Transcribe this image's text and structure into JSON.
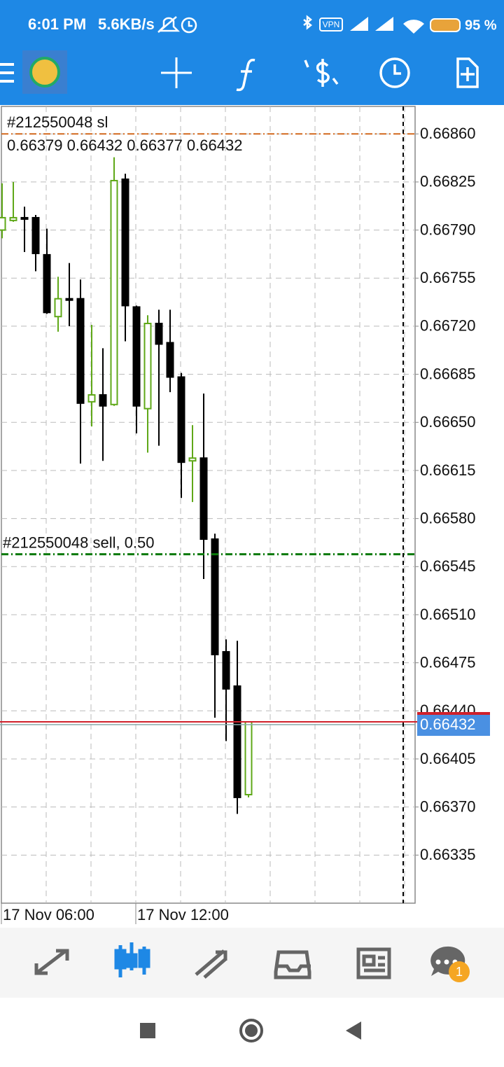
{
  "status_bar": {
    "time": "6:01 PM",
    "speed": "5.6KB/s",
    "vpn": "VPN",
    "battery": "95 %"
  },
  "chart_data": {
    "type": "candlestick",
    "sl": {
      "label": "#212550048 sl",
      "value": 0.6686,
      "color": "#d2691e"
    },
    "ohlc": "0.66379 0.66432 0.66377 0.66432",
    "order": {
      "label": "#212550048 sell, 0.50",
      "value": 0.66554,
      "color": "#0a7a0a"
    },
    "bid": 0.66432,
    "up_color": "#5fa818",
    "down_color": "#000000",
    "categories": [
      "17 Nov 06:00",
      null,
      null,
      null,
      null,
      null,
      null,
      null,
      null,
      null,
      null,
      null,
      "17 Nov 12:00",
      null,
      null,
      null,
      null,
      null,
      null,
      null,
      null,
      null,
      null
    ],
    "open": [
      0.6679,
      0.66797,
      0.66799,
      0.66799,
      0.66772,
      0.66727,
      0.6674,
      0.6674,
      0.66665,
      0.6667,
      0.66663,
      0.66827,
      0.66734,
      0.6666,
      0.66722,
      0.66708,
      0.66683,
      0.66622,
      0.66624,
      0.66565,
      0.66483,
      0.66458,
      0.66379
    ],
    "high": [
      0.66824,
      0.66825,
      0.66807,
      0.66801,
      0.66791,
      0.66756,
      0.66766,
      0.66754,
      0.66721,
      0.66704,
      0.66843,
      0.66831,
      0.66735,
      0.66728,
      0.66732,
      0.66732,
      0.66686,
      0.66648,
      0.66671,
      0.66569,
      0.66492,
      0.66491,
      0.66432
    ],
    "low": [
      0.66784,
      0.66796,
      0.66774,
      0.6676,
      0.66729,
      0.66716,
      0.6672,
      0.6662,
      0.66647,
      0.66622,
      0.66662,
      0.66709,
      0.66642,
      0.66628,
      0.66633,
      0.66672,
      0.66595,
      0.66592,
      0.66536,
      0.66435,
      0.66418,
      0.66365,
      0.66377
    ],
    "close": [
      0.66799,
      0.66799,
      0.66798,
      0.66773,
      0.6673,
      0.6674,
      0.66739,
      0.66664,
      0.6667,
      0.66662,
      0.66826,
      0.66735,
      0.66662,
      0.66722,
      0.66707,
      0.66683,
      0.66621,
      0.66624,
      0.66565,
      0.66481,
      0.66456,
      0.66377,
      0.66432
    ],
    "ylim": [
      0.663,
      0.6688
    ],
    "yticks": [
      {
        "value": 0.6686,
        "label": "0.66860"
      },
      0.66825,
      {
        "value": 0.6679,
        "label": "0.66790"
      },
      0.66755,
      {
        "value": 0.6672,
        "label": "0.66720"
      },
      0.66685,
      {
        "value": 0.6665,
        "label": "0.66650"
      },
      0.66615,
      {
        "value": 0.6658,
        "label": "0.66580"
      },
      0.66545,
      {
        "value": 0.6651,
        "label": "0.66510"
      },
      0.66475,
      {
        "value": 0.6644,
        "label": "0.66440"
      },
      0.66405,
      {
        "value": 0.6637,
        "label": "0.66370"
      },
      0.66335
    ],
    "grid": true
  },
  "bottom_nav": {
    "badge": "1"
  }
}
